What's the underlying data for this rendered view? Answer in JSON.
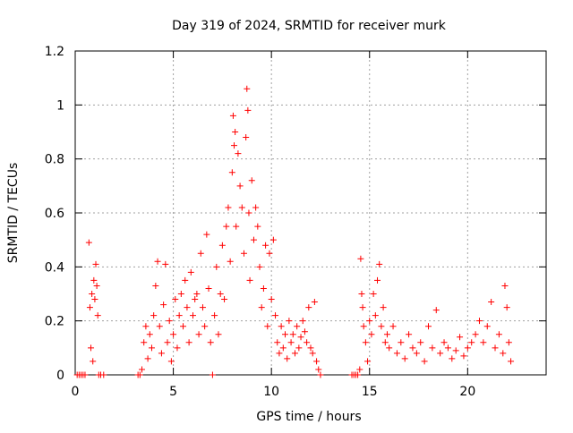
{
  "chart_data": {
    "type": "scatter",
    "title": "Day 319 of 2024, SRMTID for receiver murk",
    "xlabel": "GPS time / hours",
    "ylabel": "SRMTID / TECUs",
    "xlim": [
      0,
      24
    ],
    "ylim": [
      0,
      1.2
    ],
    "xticks": [
      0,
      5,
      10,
      15,
      20
    ],
    "xtick_labels": [
      "0",
      "5",
      "10",
      "15",
      "20"
    ],
    "yticks": [
      0,
      0.2,
      0.4,
      0.6,
      0.8,
      1.0,
      1.2
    ],
    "ytick_labels": [
      "0",
      "0.2",
      "0.4",
      "0.6",
      "0.8",
      "1",
      "1.2"
    ],
    "grid": true,
    "marker": "+",
    "color": "#ff0000",
    "series": [
      {
        "name": "SRMTID",
        "x": [
          0.1,
          0.2,
          0.3,
          0.4,
          0.5,
          0.7,
          0.75,
          0.8,
          0.85,
          0.9,
          0.95,
          1.0,
          1.05,
          1.1,
          1.15,
          1.2,
          1.3,
          1.45,
          3.2,
          3.3,
          3.4,
          3.5,
          3.6,
          3.7,
          3.8,
          3.9,
          4.0,
          4.1,
          4.2,
          4.3,
          4.4,
          4.5,
          4.6,
          4.7,
          4.8,
          4.9,
          5.0,
          5.1,
          5.2,
          5.3,
          5.4,
          5.5,
          5.6,
          5.7,
          5.8,
          5.9,
          6.0,
          6.1,
          6.2,
          6.3,
          6.4,
          6.5,
          6.6,
          6.7,
          6.8,
          6.9,
          7.0,
          7.1,
          7.2,
          7.3,
          7.4,
          7.5,
          7.6,
          7.7,
          7.8,
          7.9,
          8.0,
          8.05,
          8.1,
          8.15,
          8.2,
          8.3,
          8.4,
          8.5,
          8.6,
          8.7,
          8.75,
          8.8,
          8.85,
          8.9,
          9.0,
          9.1,
          9.2,
          9.3,
          9.4,
          9.5,
          9.6,
          9.7,
          9.8,
          9.9,
          10.0,
          10.1,
          10.2,
          10.3,
          10.4,
          10.5,
          10.6,
          10.7,
          10.8,
          10.9,
          11.0,
          11.1,
          11.2,
          11.3,
          11.4,
          11.5,
          11.6,
          11.7,
          11.8,
          11.9,
          12.0,
          12.1,
          12.2,
          12.3,
          12.4,
          12.5,
          14.1,
          14.2,
          14.3,
          14.4,
          14.5,
          14.55,
          14.6,
          14.65,
          14.7,
          14.8,
          14.9,
          15.0,
          15.1,
          15.2,
          15.3,
          15.4,
          15.5,
          15.6,
          15.7,
          15.8,
          15.9,
          16.0,
          16.2,
          16.4,
          16.6,
          16.8,
          17.0,
          17.2,
          17.4,
          17.6,
          17.8,
          18.0,
          18.2,
          18.4,
          18.6,
          18.8,
          19.0,
          19.2,
          19.4,
          19.6,
          19.8,
          20.0,
          20.2,
          20.4,
          20.6,
          20.8,
          21.0,
          21.2,
          21.4,
          21.6,
          21.8,
          21.9,
          22.0,
          22.1,
          22.2
        ],
        "y": [
          0.0,
          0.0,
          0.0,
          0.0,
          0.0,
          0.49,
          0.25,
          0.1,
          0.3,
          0.05,
          0.35,
          0.28,
          0.41,
          0.33,
          0.22,
          0.0,
          0.0,
          0.0,
          0.0,
          0.0,
          0.02,
          0.12,
          0.18,
          0.06,
          0.15,
          0.1,
          0.22,
          0.33,
          0.42,
          0.18,
          0.08,
          0.26,
          0.41,
          0.12,
          0.2,
          0.05,
          0.15,
          0.28,
          0.1,
          0.22,
          0.3,
          0.18,
          0.35,
          0.25,
          0.12,
          0.38,
          0.22,
          0.28,
          0.3,
          0.15,
          0.45,
          0.25,
          0.18,
          0.52,
          0.32,
          0.12,
          0.0,
          0.22,
          0.4,
          0.15,
          0.3,
          0.48,
          0.28,
          0.55,
          0.62,
          0.42,
          0.75,
          0.96,
          0.85,
          0.9,
          0.55,
          0.82,
          0.7,
          0.62,
          0.45,
          0.88,
          1.06,
          0.98,
          0.6,
          0.35,
          0.72,
          0.5,
          0.62,
          0.55,
          0.4,
          0.25,
          0.32,
          0.48,
          0.18,
          0.45,
          0.28,
          0.5,
          0.22,
          0.12,
          0.08,
          0.18,
          0.1,
          0.15,
          0.06,
          0.2,
          0.12,
          0.15,
          0.08,
          0.18,
          0.1,
          0.14,
          0.2,
          0.16,
          0.12,
          0.25,
          0.1,
          0.08,
          0.27,
          0.05,
          0.02,
          0.0,
          0.0,
          0.0,
          0.0,
          0.0,
          0.02,
          0.43,
          0.3,
          0.25,
          0.18,
          0.12,
          0.05,
          0.2,
          0.15,
          0.3,
          0.22,
          0.35,
          0.41,
          0.18,
          0.25,
          0.12,
          0.15,
          0.1,
          0.18,
          0.08,
          0.12,
          0.06,
          0.15,
          0.1,
          0.08,
          0.12,
          0.05,
          0.18,
          0.1,
          0.24,
          0.08,
          0.12,
          0.1,
          0.06,
          0.09,
          0.14,
          0.07,
          0.1,
          0.12,
          0.15,
          0.2,
          0.12,
          0.18,
          0.27,
          0.1,
          0.15,
          0.08,
          0.33,
          0.25,
          0.12,
          0.05
        ]
      }
    ]
  }
}
